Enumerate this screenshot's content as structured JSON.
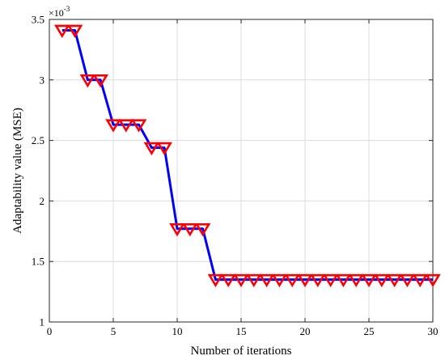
{
  "chart_data": {
    "type": "line",
    "title": "",
    "xlabel": "Number of iterations",
    "ylabel": "Adaptability value (MSE)",
    "y_multiplier_label": "×10",
    "y_multiplier_exponent": "-3",
    "xlim": [
      0,
      30
    ],
    "ylim": [
      1,
      3.5
    ],
    "xticks": [
      0,
      5,
      10,
      15,
      20,
      25,
      30
    ],
    "yticks": [
      1,
      1.5,
      2,
      2.5,
      3,
      3.5
    ],
    "xtick_labels": [
      "0",
      "5",
      "10",
      "15",
      "20",
      "25",
      "30"
    ],
    "ytick_labels": [
      "1",
      "1.5",
      "2",
      "2.5",
      "3",
      "3.5"
    ],
    "grid": true,
    "series": [
      {
        "line_color": "#0000ff",
        "marker": "triangle-down",
        "marker_color": "#ff0000",
        "x": [
          1,
          2,
          3,
          4,
          5,
          6,
          7,
          8,
          9,
          10,
          11,
          12,
          13,
          14,
          15,
          16,
          17,
          18,
          19,
          20,
          21,
          22,
          23,
          24,
          25,
          26,
          27,
          28,
          29,
          30
        ],
        "y": [
          3.41,
          3.41,
          3.0,
          3.0,
          2.63,
          2.63,
          2.63,
          2.44,
          2.44,
          1.77,
          1.77,
          1.77,
          1.35,
          1.35,
          1.35,
          1.35,
          1.35,
          1.35,
          1.35,
          1.35,
          1.35,
          1.35,
          1.35,
          1.35,
          1.35,
          1.35,
          1.35,
          1.35,
          1.35,
          1.35
        ]
      }
    ]
  }
}
